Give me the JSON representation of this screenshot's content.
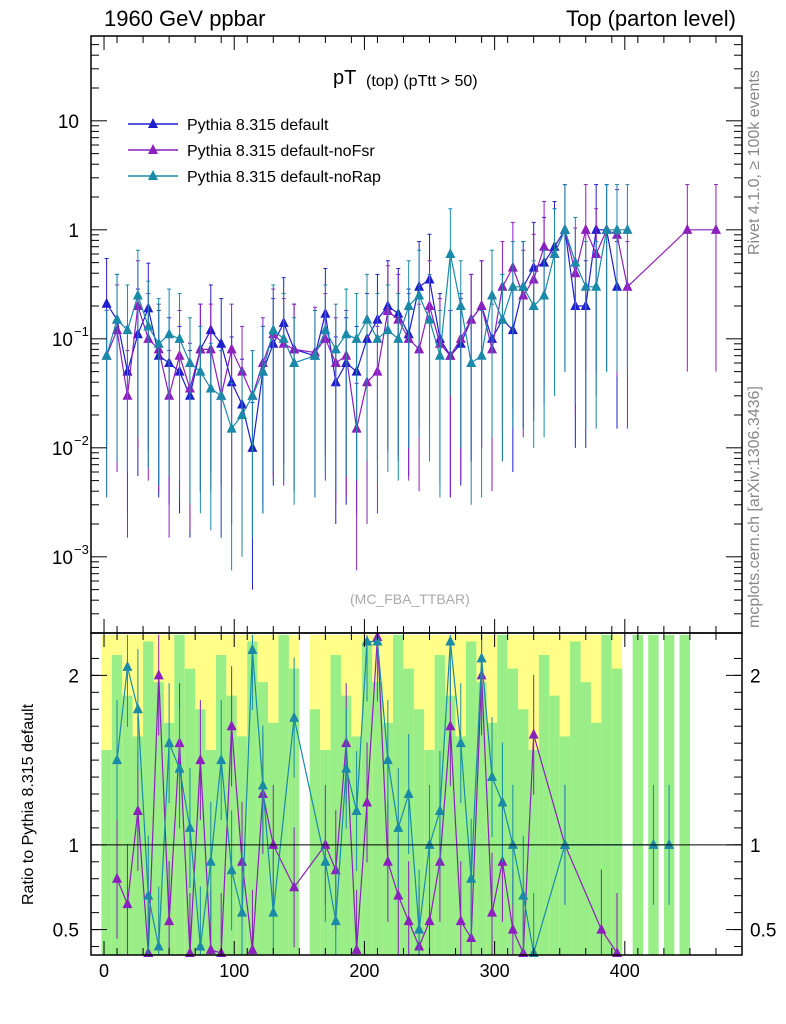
{
  "header": {
    "left": "1960 GeV ppbar",
    "right": "Top (parton level)"
  },
  "side_text": {
    "rivet": "Rivet 4.1.0, ≥ 100k events",
    "mcplots": "mcplots.cern.ch [arXiv:1306.3436]"
  },
  "chart_data": {
    "type": "line",
    "title": "pT (top) (pTtt > 50)",
    "title_main": "pT",
    "title_sub": "(top) (pTtt > 50)",
    "watermark": "(MC_FBA_TTBAR)",
    "xlabel": "",
    "ylabel_main": "",
    "ylabel_ratio": "Ratio to Pythia 8.315 default",
    "xlim": [
      -10,
      490
    ],
    "ylim_main": [
      0.0002,
      60
    ],
    "ylim_ratio": [
      0.35,
      2.25
    ],
    "yscale_main": "log",
    "x_ticks": [
      "0",
      "100",
      "200",
      "300",
      "400"
    ],
    "y_ticks_main": [
      "10",
      "1",
      "10^-1",
      "10^-2",
      "10^-3"
    ],
    "y_ticks_ratio": [
      "2",
      "1",
      "0.5"
    ],
    "legend": [
      "Pythia 8.315 default",
      "Pythia 8.315 default-noFsr",
      "Pythia 8.315 default-noRap"
    ],
    "series": [
      {
        "name": "Pythia 8.315 default",
        "color": "#1f1fd0",
        "x": [
          2,
          10,
          18,
          26,
          34,
          42,
          50,
          58,
          66,
          74,
          82,
          90,
          98,
          106,
          114,
          122,
          130,
          138,
          146,
          162,
          170,
          178,
          186,
          194,
          202,
          210,
          218,
          226,
          234,
          242,
          250,
          258,
          266,
          274,
          282,
          290,
          298,
          306,
          314,
          322,
          330,
          338,
          346,
          354,
          362,
          370,
          378,
          386,
          394
        ],
        "values": [
          0.21,
          0.15,
          0.05,
          0.11,
          0.19,
          0.07,
          0.06,
          0.05,
          0.03,
          0.08,
          0.12,
          0.09,
          0.04,
          0.025,
          0.01,
          0.05,
          0.09,
          0.14,
          0.08,
          0.07,
          0.17,
          0.04,
          0.06,
          0.05,
          0.1,
          0.15,
          0.2,
          0.17,
          0.11,
          0.3,
          0.35,
          0.1,
          0.07,
          0.09,
          0.15,
          0.2,
          0.1,
          0.15,
          0.12,
          0.3,
          0.45,
          0.5,
          0.7,
          1.0,
          0.2,
          0.2,
          1.0,
          1.0,
          0.3
        ]
      },
      {
        "name": "Pythia 8.315 default-noFsr",
        "color": "#8c1fbe",
        "x": [
          2,
          10,
          18,
          26,
          34,
          42,
          50,
          58,
          66,
          74,
          82,
          90,
          98,
          106,
          114,
          122,
          130,
          138,
          146,
          162,
          170,
          178,
          186,
          194,
          202,
          210,
          218,
          226,
          234,
          242,
          250,
          258,
          266,
          274,
          282,
          290,
          298,
          306,
          314,
          322,
          330,
          338,
          346,
          354,
          362,
          370,
          378,
          386,
          394,
          402,
          448,
          470
        ],
        "values": [
          0.07,
          0.12,
          0.03,
          0.2,
          0.1,
          0.08,
          0.03,
          0.07,
          0.035,
          0.08,
          0.08,
          0.03,
          0.08,
          0.05,
          0.03,
          0.06,
          0.11,
          0.09,
          0.08,
          0.075,
          0.1,
          0.06,
          0.07,
          0.015,
          0.04,
          0.05,
          0.18,
          0.15,
          0.1,
          0.08,
          0.2,
          0.09,
          0.07,
          0.1,
          0.15,
          0.2,
          0.08,
          0.3,
          0.45,
          0.25,
          0.35,
          0.7,
          0.6,
          1.0,
          0.4,
          1.0,
          0.6,
          1.0,
          0.9,
          0.3,
          1.0,
          1.0
        ]
      },
      {
        "name": "Pythia 8.315 default-noRap",
        "color": "#1a8aa8",
        "x": [
          2,
          10,
          18,
          26,
          34,
          42,
          50,
          58,
          66,
          74,
          82,
          90,
          98,
          106,
          114,
          122,
          130,
          138,
          146,
          162,
          170,
          178,
          186,
          194,
          202,
          210,
          218,
          226,
          234,
          242,
          250,
          258,
          266,
          274,
          282,
          290,
          298,
          306,
          314,
          322,
          330,
          338,
          346,
          354,
          362,
          370,
          378,
          386,
          394,
          402
        ],
        "values": [
          0.07,
          0.15,
          0.12,
          0.25,
          0.13,
          0.09,
          0.11,
          0.1,
          0.06,
          0.05,
          0.035,
          0.03,
          0.015,
          0.02,
          0.03,
          0.05,
          0.12,
          0.1,
          0.06,
          0.07,
          0.12,
          0.08,
          0.11,
          0.1,
          0.15,
          0.1,
          0.12,
          0.1,
          0.2,
          0.25,
          0.15,
          0.07,
          0.6,
          0.2,
          0.06,
          0.07,
          0.25,
          0.15,
          0.3,
          0.3,
          0.2,
          0.25,
          0.6,
          1.0,
          0.5,
          0.3,
          0.3,
          1.0,
          1.0,
          1.0
        ]
      }
    ],
    "ratio_series": [
      {
        "name": "Pythia 8.315 default-noFsr",
        "color": "#8c1fbe",
        "x": [
          10,
          18,
          26,
          34,
          42,
          50,
          58,
          66,
          74,
          82,
          90,
          98,
          106,
          114,
          122,
          130,
          146,
          170,
          178,
          186,
          194,
          202,
          210,
          218,
          226,
          234,
          242,
          250,
          258,
          266,
          274,
          282,
          290,
          298,
          306,
          314,
          322,
          330,
          354,
          382,
          394
        ],
        "values": [
          0.8,
          0.65,
          1.2,
          0.35,
          2.0,
          0.55,
          1.6,
          0.35,
          1.5,
          0.38,
          0.35,
          1.7,
          0.9,
          0.38,
          1.3,
          1.0,
          0.75,
          1.0,
          0.85,
          1.6,
          0.38,
          1.25,
          2.25,
          0.9,
          0.7,
          0.55,
          0.4,
          0.55,
          0.9,
          1.7,
          0.55,
          0.45,
          2.0,
          0.6,
          0.9,
          0.5,
          0.35,
          1.65,
          1.0,
          0.5,
          0.35
        ]
      },
      {
        "name": "Pythia 8.315 default-noRap",
        "color": "#1a8aa8",
        "x": [
          10,
          18,
          26,
          34,
          42,
          50,
          58,
          66,
          74,
          82,
          90,
          98,
          106,
          114,
          122,
          130,
          146,
          170,
          178,
          186,
          194,
          202,
          210,
          218,
          226,
          234,
          242,
          250,
          258,
          266,
          274,
          282,
          290,
          298,
          306,
          314,
          322,
          330,
          354,
          422,
          434
        ],
        "values": [
          1.5,
          2.05,
          1.8,
          0.7,
          0.4,
          1.6,
          1.45,
          1.1,
          0.4,
          0.9,
          1.5,
          0.85,
          0.6,
          2.15,
          1.35,
          0.6,
          1.75,
          0.9,
          0.55,
          1.45,
          1.2,
          2.2,
          2.2,
          1.5,
          1.1,
          1.3,
          0.5,
          1.0,
          1.2,
          2.2,
          1.6,
          0.8,
          2.1,
          1.4,
          1.25,
          1.0,
          0.7,
          0.35,
          1.0,
          1.0,
          1.0
        ]
      }
    ]
  }
}
